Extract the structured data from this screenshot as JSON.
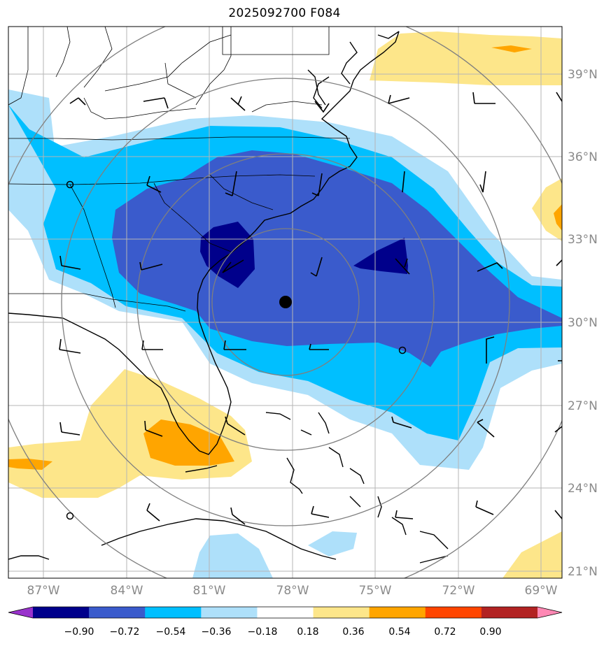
{
  "title": "2025092700 F084",
  "map": {
    "lat_labels": [
      "39°N",
      "36°N",
      "33°N",
      "30°N",
      "27°N",
      "24°N",
      "21°N"
    ],
    "lon_labels": [
      "87°W",
      "84°W",
      "81°W",
      "78°W",
      "75°W",
      "72°W",
      "69°W"
    ],
    "center_marker": "storm-center",
    "range_rings": 4
  },
  "colorbar": {
    "ticks": [
      "−0.90",
      "−0.72",
      "−0.54",
      "−0.36",
      "−0.18",
      "0.18",
      "0.36",
      "0.54",
      "0.72",
      "0.90"
    ],
    "colors": [
      "#9932cc",
      "#00008b",
      "#3a5bcc",
      "#00bfff",
      "#aee0fa",
      "#ffffff",
      "#fde68a",
      "#ffa500",
      "#ff4500",
      "#b22222",
      "#ff88b4"
    ]
  },
  "colors": {
    "grid": "#b5b5b5",
    "ring": "#7f7f7f",
    "coast": "#000000",
    "label": "#8a8a8a"
  }
}
